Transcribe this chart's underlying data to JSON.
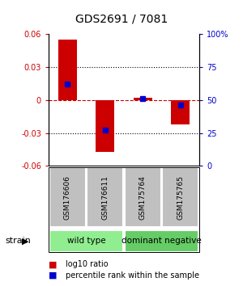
{
  "title": "GDS2691 / 7081",
  "samples": [
    "GSM176606",
    "GSM176611",
    "GSM175764",
    "GSM175765"
  ],
  "log10_ratio": [
    0.055,
    -0.047,
    0.002,
    -0.022
  ],
  "percentile_rank": [
    62,
    27,
    51,
    46
  ],
  "groups": [
    {
      "label": "wild type",
      "samples": [
        0,
        1
      ],
      "color": "#90EE90"
    },
    {
      "label": "dominant negative",
      "samples": [
        2,
        3
      ],
      "color": "#66CC66"
    }
  ],
  "ylim": [
    -0.06,
    0.06
  ],
  "yticks_left": [
    -0.06,
    -0.03,
    0,
    0.03,
    0.06
  ],
  "yticks_right": [
    0,
    25,
    50,
    75,
    100
  ],
  "bar_color": "#CC0000",
  "dot_color": "#0000CC",
  "hline_color": "#CC0000",
  "grid_color": "#000000",
  "label_color_left": "#CC0000",
  "label_color_right": "#0000CC",
  "strain_label": "strain",
  "legend_items": [
    "log10 ratio",
    "percentile rank within the sample"
  ],
  "sample_box_color": "#C0C0C0",
  "bar_width": 0.5
}
